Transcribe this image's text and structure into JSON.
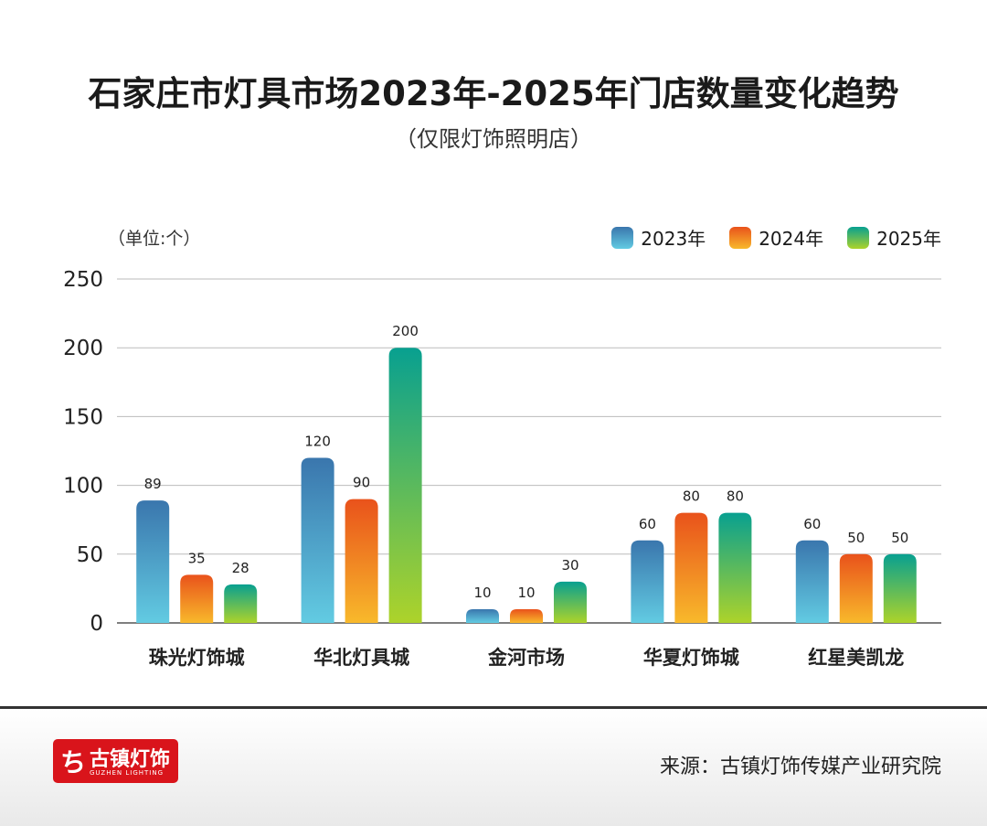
{
  "chart_data": {
    "type": "bar",
    "title": "石家庄市灯具市场2023年-2025年门店数量变化趋势",
    "subtitle": "（仅限灯饰照明店）",
    "ylabel": "（单位:个）",
    "ylim": [
      0,
      250
    ],
    "yticks": [
      0,
      50,
      100,
      150,
      200,
      250
    ],
    "grid": true,
    "legend_position": "top-right",
    "categories": [
      "珠光灯饰城",
      "华北灯具城",
      "金河市场",
      "华夏灯饰城",
      "红星美凯龙"
    ],
    "series": [
      {
        "name": "2023年",
        "values": [
          89,
          120,
          10,
          60,
          60
        ],
        "colors": [
          "#3a76ad",
          "#62cbe2"
        ]
      },
      {
        "name": "2024年",
        "values": [
          35,
          90,
          10,
          80,
          50
        ],
        "colors": [
          "#e9521b",
          "#f8b92b"
        ]
      },
      {
        "name": "2025年",
        "values": [
          28,
          200,
          30,
          80,
          50
        ],
        "colors": [
          "#08a090",
          "#add32a"
        ]
      }
    ]
  },
  "footer": {
    "logo_text": "古镇灯饰",
    "logo_sub": "GUZHEN LIGHTING",
    "source": "来源：古镇灯饰传媒产业研究院"
  }
}
